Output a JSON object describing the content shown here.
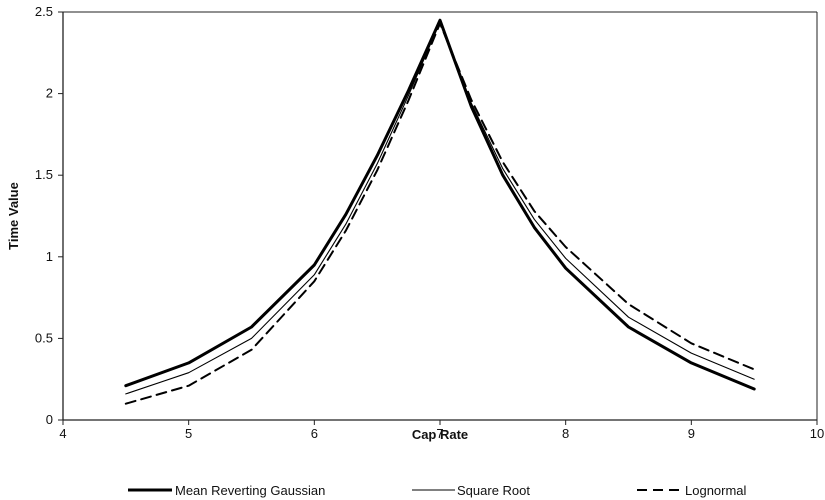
{
  "chart_data": {
    "type": "line",
    "xlabel": "Cap Rate",
    "ylabel": "Time Value",
    "xlim": [
      4,
      10
    ],
    "ylim": [
      0,
      2.5
    ],
    "x_ticks": [
      4,
      5,
      6,
      7,
      8,
      9,
      10
    ],
    "y_ticks": [
      0,
      0.5,
      1,
      1.5,
      2,
      2.5
    ],
    "y_tick_labels": [
      "0",
      "0.5",
      "1",
      "1.5",
      "2",
      "2.5"
    ],
    "grid": false,
    "legend_position": "bottom",
    "series": [
      {
        "name": "Mean Reverting Gaussian",
        "style": "thick-solid",
        "x": [
          4.5,
          5.0,
          5.5,
          6.0,
          6.25,
          6.5,
          6.75,
          7.0,
          7.25,
          7.5,
          7.75,
          8.0,
          8.5,
          9.0,
          9.5
        ],
        "y": [
          0.21,
          0.35,
          0.57,
          0.95,
          1.26,
          1.62,
          2.02,
          2.45,
          1.92,
          1.5,
          1.18,
          0.93,
          0.57,
          0.35,
          0.19
        ]
      },
      {
        "name": "Square Root",
        "style": "thin-solid",
        "x": [
          4.5,
          5.0,
          5.5,
          6.0,
          6.25,
          6.5,
          6.75,
          7.0,
          7.25,
          7.5,
          7.75,
          8.0,
          8.5,
          9.0,
          9.5
        ],
        "y": [
          0.16,
          0.29,
          0.5,
          0.89,
          1.2,
          1.57,
          1.99,
          2.44,
          1.94,
          1.54,
          1.23,
          0.99,
          0.63,
          0.41,
          0.25
        ]
      },
      {
        "name": "Lognormal",
        "style": "dashed",
        "x": [
          4.5,
          5.0,
          5.5,
          6.0,
          6.25,
          6.5,
          6.75,
          7.0,
          7.25,
          7.5,
          7.75,
          8.0,
          8.5,
          9.0,
          9.5
        ],
        "y": [
          0.1,
          0.21,
          0.43,
          0.85,
          1.16,
          1.53,
          1.96,
          2.43,
          1.96,
          1.58,
          1.28,
          1.06,
          0.71,
          0.47,
          0.31
        ]
      }
    ]
  }
}
